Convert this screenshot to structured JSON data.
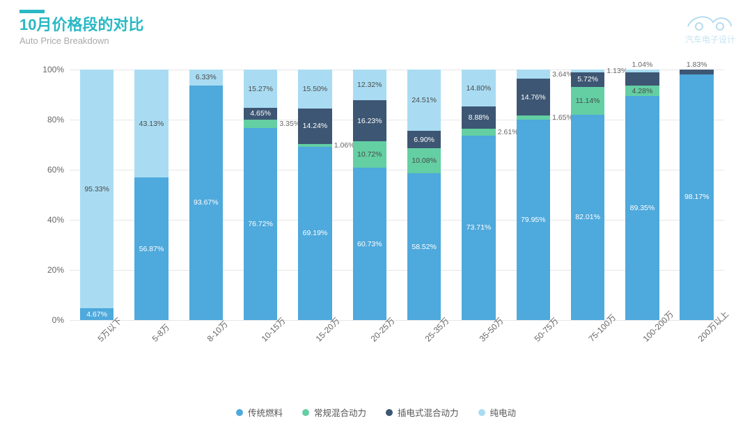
{
  "header": {
    "title_zh": "10月价格段的对比",
    "title_en": "Auto Price Breakdown",
    "accent_color": "#29b8c4"
  },
  "logo": {
    "caption": "汽车电子设计",
    "stroke_color": "#a9d6ea"
  },
  "chart": {
    "type": "stacked-bar-100pct",
    "ylim": [
      0,
      100
    ],
    "ytick_step": 20,
    "y_suffix": "%",
    "grid_color": "#e6e6e6",
    "background_color": "#ffffff",
    "label_fontsize": 10.5,
    "axis_fontsize": 12,
    "bar_width_ratio": 0.62,
    "series": [
      {
        "key": "trad",
        "label": "传统燃料",
        "color": "#4ea9dc"
      },
      {
        "key": "hev",
        "label": "常规混合动力",
        "color": "#63cfa3"
      },
      {
        "key": "phev",
        "label": "插电式混合动力",
        "color": "#3d5673"
      },
      {
        "key": "bev",
        "label": "纯电动",
        "color": "#a9dcf2"
      }
    ],
    "categories": [
      "5万以下",
      "5-8万",
      "8-10万",
      "10-15万",
      "15-20万",
      "20-25万",
      "25-35万",
      "35-50万",
      "50-75万",
      "75-100万",
      "100-200万",
      "200万以上"
    ],
    "data": [
      {
        "trad": 4.67,
        "hev": 0.0,
        "phev": 0.0,
        "bev": 95.33
      },
      {
        "trad": 56.87,
        "hev": 0.0,
        "phev": 0.0,
        "bev": 43.13
      },
      {
        "trad": 93.67,
        "hev": 0.0,
        "phev": 0.0,
        "bev": 6.33
      },
      {
        "trad": 76.72,
        "hev": 3.35,
        "phev": 4.65,
        "bev": 15.27
      },
      {
        "trad": 69.19,
        "hev": 1.06,
        "phev": 14.24,
        "bev": 15.5
      },
      {
        "trad": 60.73,
        "hev": 10.72,
        "phev": 16.23,
        "bev": 12.32
      },
      {
        "trad": 58.52,
        "hev": 10.08,
        "phev": 6.9,
        "bev": 24.51
      },
      {
        "trad": 73.71,
        "hev": 2.61,
        "phev": 8.88,
        "bev": 14.8
      },
      {
        "trad": 79.95,
        "hev": 1.65,
        "phev": 14.76,
        "bev": 3.64
      },
      {
        "trad": 82.01,
        "hev": 11.14,
        "phev": 5.72,
        "bev": 1.13
      },
      {
        "trad": 89.35,
        "hev": 4.28,
        "phev": 5.33,
        "bev": 1.04
      },
      {
        "trad": 98.17,
        "hev": 0.0,
        "phev": 1.83,
        "bev": 0.0
      }
    ],
    "label_visibility_threshold_inside": 4.0,
    "labels_override": {
      "10": {
        "phev": {
          "show": false
        },
        "bev": {
          "text": "1.04%",
          "pos": "above"
        }
      },
      "11": {
        "phev": {
          "text": "1.83%",
          "pos": "above"
        }
      }
    }
  }
}
